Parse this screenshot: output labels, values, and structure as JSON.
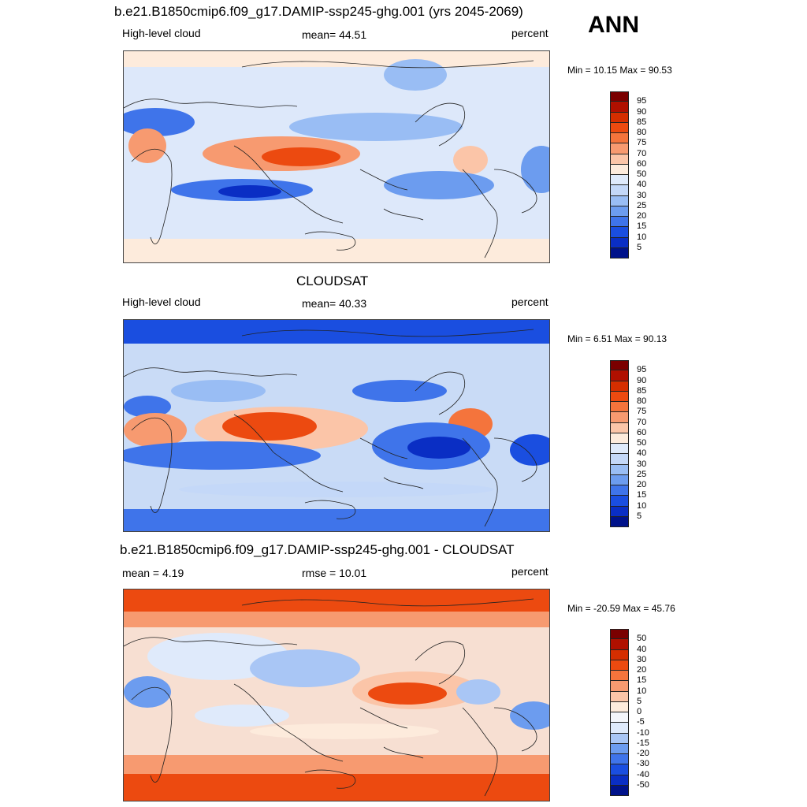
{
  "season": "ANN",
  "panels": [
    {
      "title": "b.e21.B1850cmip6.f09_g17.DAMIP-ssp245-ghg.001 (yrs 2045-2069)",
      "left_label": "High-level cloud",
      "center_label": "mean=  44.51",
      "right_label": "percent",
      "minmax": "Min =  10.15 Max =  90.53",
      "kind": "model",
      "colorbar": {
        "labels": [
          "95",
          "90",
          "85",
          "80",
          "75",
          "70",
          "60",
          "50",
          "40",
          "30",
          "25",
          "20",
          "15",
          "10",
          "5"
        ],
        "colors": [
          "#7a0000",
          "#b01000",
          "#d42e00",
          "#ec4a10",
          "#f4743c",
          "#f79a70",
          "#fbc5a8",
          "#fdebdc",
          "#dfeafb",
          "#c4d8f8",
          "#99bdf4",
          "#6c9cef",
          "#3f74ea",
          "#1a4ee0",
          "#0a2ec4",
          "#00128a"
        ]
      }
    },
    {
      "title": "CLOUDSAT",
      "left_label": "High-level cloud",
      "center_label": "mean=  40.33",
      "right_label": "percent",
      "minmax": "Min =   6.51 Max =  90.13",
      "kind": "obs",
      "colorbar": {
        "labels": [
          "95",
          "90",
          "85",
          "80",
          "75",
          "70",
          "60",
          "50",
          "40",
          "30",
          "25",
          "20",
          "15",
          "10",
          "5"
        ],
        "colors": [
          "#7a0000",
          "#b01000",
          "#d42e00",
          "#ec4a10",
          "#f4743c",
          "#f79a70",
          "#fbc5a8",
          "#fdebdc",
          "#dfeafb",
          "#c4d8f8",
          "#99bdf4",
          "#6c9cef",
          "#3f74ea",
          "#1a4ee0",
          "#0a2ec4",
          "#00128a"
        ]
      }
    },
    {
      "title": "b.e21.B1850cmip6.f09_g17.DAMIP-ssp245-ghg.001 - CLOUDSAT",
      "left_label": "mean =   4.19",
      "center_label": "rmse =  10.01",
      "right_label": "percent",
      "minmax": "Min = -20.59 Max =  45.76",
      "kind": "diff",
      "colorbar": {
        "labels": [
          "50",
          "40",
          "30",
          "20",
          "15",
          "10",
          "5",
          "0",
          "-5",
          "-10",
          "-15",
          "-20",
          "-30",
          "-40",
          "-50"
        ],
        "colors": [
          "#7a0000",
          "#b01000",
          "#d42e00",
          "#ec4a10",
          "#f4743c",
          "#f79a70",
          "#fbc5a8",
          "#fdebdc",
          "#f4f6fb",
          "#dfeafb",
          "#a9c6f5",
          "#6c9cef",
          "#3f74ea",
          "#1a4ee0",
          "#0a2ec4",
          "#00128a"
        ]
      }
    }
  ]
}
